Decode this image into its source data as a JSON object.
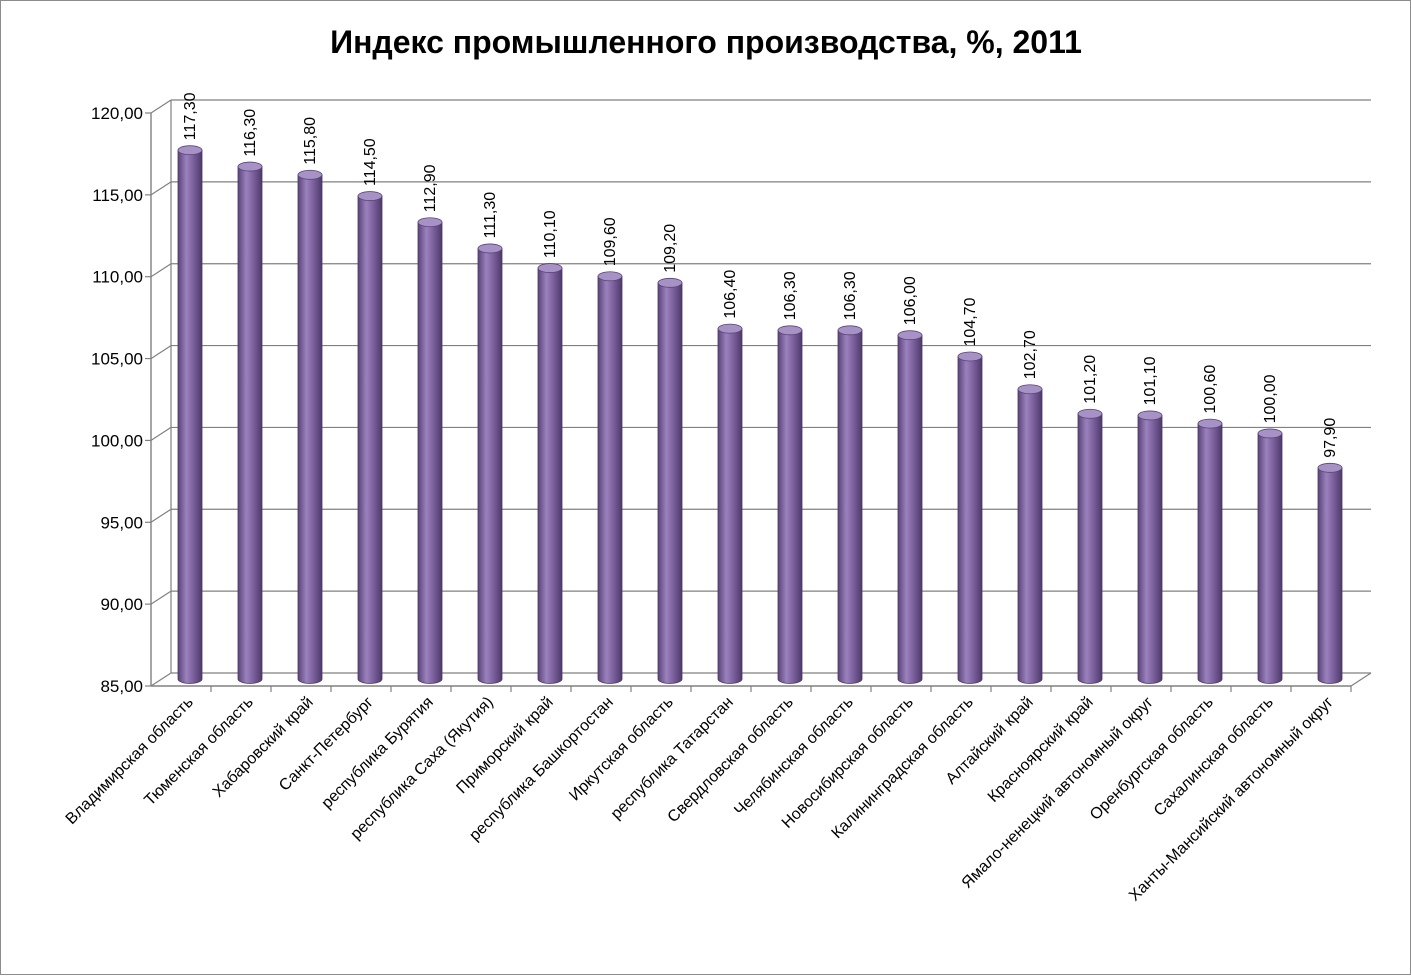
{
  "chart_data": {
    "type": "bar",
    "title": "Индекс промышленного производства, %, 2011",
    "xlabel": "",
    "ylabel": "",
    "ylim": [
      85,
      120
    ],
    "yticks": [
      "85,00",
      "90,00",
      "95,00",
      "100,00",
      "105,00",
      "110,00",
      "115,00",
      "120,00"
    ],
    "ytick_values": [
      85,
      90,
      95,
      100,
      105,
      110,
      115,
      120
    ],
    "grid": true,
    "legend": "none",
    "bar_color": "#8064a2",
    "categories": [
      "Владимирская область",
      "Тюменская область",
      "Хабаровский край",
      "Санкт-Петербург",
      "республика Бурятия",
      "республика Саха (Якутия)",
      "Приморский край",
      "республика Башкортостан",
      "Иркутская область",
      "республика Татарстан",
      "Свердловская область",
      "Челябинская область",
      "Новосибирская область",
      "Калининградская область",
      "Алтайский край",
      "Красноярский край",
      "Ямало-ненецкий автономный округ",
      "Оренбургская область",
      "Сахалинская область",
      "Ханты-Мансийский автономный округ"
    ],
    "values": [
      117.3,
      116.3,
      115.8,
      114.5,
      112.9,
      111.3,
      110.1,
      109.6,
      109.2,
      106.4,
      106.3,
      106.3,
      106.0,
      104.7,
      102.7,
      101.2,
      101.1,
      100.6,
      100.0,
      97.9
    ],
    "value_labels": [
      "117,30",
      "116,30",
      "115,80",
      "114,50",
      "112,90",
      "111,30",
      "110,10",
      "109,60",
      "109,20",
      "106,40",
      "106,30",
      "106,30",
      "106,00",
      "104,70",
      "102,70",
      "101,20",
      "101,10",
      "100,60",
      "100,00",
      "97,90"
    ]
  }
}
